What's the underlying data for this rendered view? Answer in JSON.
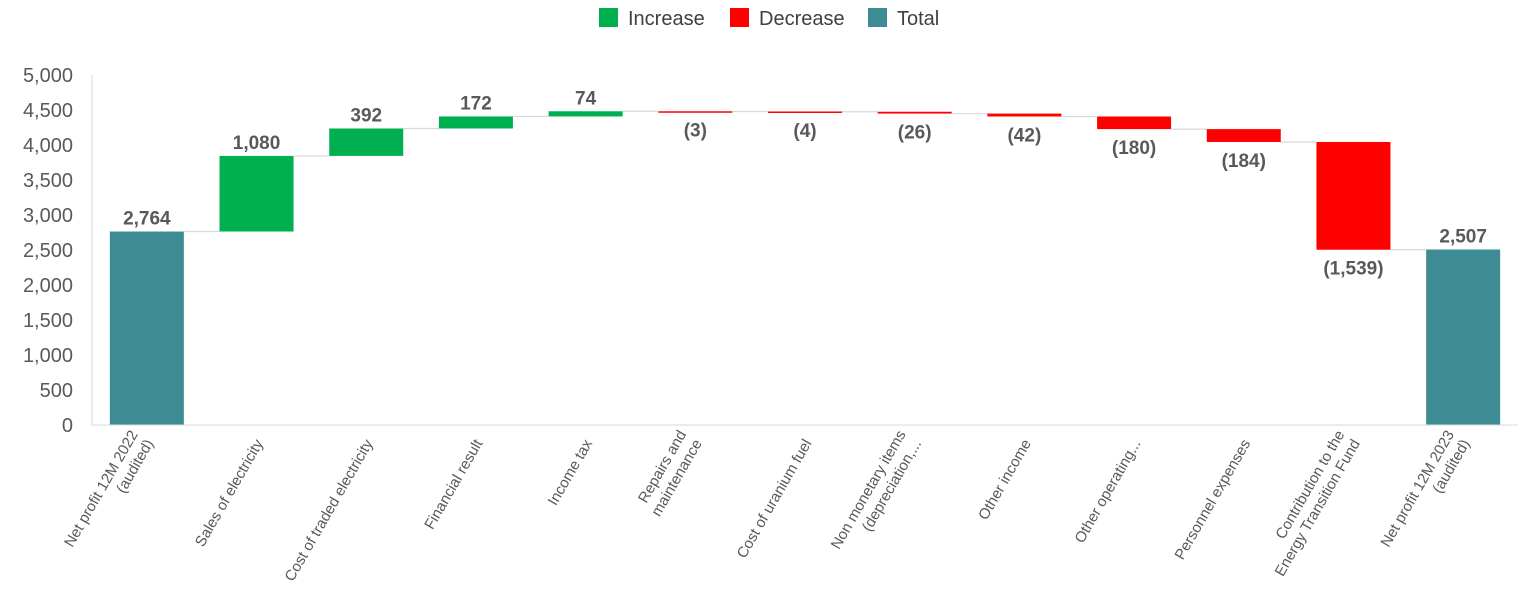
{
  "chart_data": {
    "type": "waterfall",
    "title": "",
    "xlabel": "",
    "ylabel": "",
    "ylim": [
      0,
      5000
    ],
    "yticks": [
      0,
      500,
      1000,
      1500,
      2000,
      2500,
      3000,
      3500,
      4000,
      4500,
      5000
    ],
    "ytick_labels": [
      "0",
      "500",
      "1,000",
      "1,500",
      "2,000",
      "2,500",
      "3,000",
      "3,500",
      "4,000",
      "4,500",
      "5,000"
    ],
    "grid": false,
    "legend": {
      "placement": "top-center",
      "items": [
        {
          "name": "Increase",
          "color": "#00B050"
        },
        {
          "name": "Decrease",
          "color": "#FF0000"
        },
        {
          "name": "Total",
          "color": "#3D8C94"
        }
      ]
    },
    "categories": [
      [
        "Net profit 12M 2022",
        "(audited)"
      ],
      [
        "Sales of electricity"
      ],
      [
        "Cost of traded electricity"
      ],
      [
        "Financial result"
      ],
      [
        "Income tax"
      ],
      [
        "Repairs and",
        "maintenance"
      ],
      [
        "Cost of uranium fuel"
      ],
      [
        "Non monetary items",
        "(depreciation,..."
      ],
      [
        "Other income"
      ],
      [
        "Other operating..."
      ],
      [
        "Personnel expenses"
      ],
      [
        "Contribution to the",
        "Energy Transition Fund"
      ],
      [
        "Net profit 12M 2023",
        "(audited)"
      ]
    ],
    "values": [
      2764,
      1080,
      392,
      172,
      74,
      -3,
      -4,
      -26,
      -42,
      -180,
      -184,
      -1539,
      2507
    ],
    "kinds": [
      "total",
      "increase",
      "increase",
      "increase",
      "increase",
      "decrease",
      "decrease",
      "decrease",
      "decrease",
      "decrease",
      "decrease",
      "decrease",
      "total"
    ],
    "data_labels": [
      "2,764",
      "1,080",
      "392",
      "172",
      "74",
      "(3)",
      "(4)",
      "(26)",
      "(42)",
      "(180)",
      "(184)",
      "(1,539)",
      "2,507"
    ]
  }
}
